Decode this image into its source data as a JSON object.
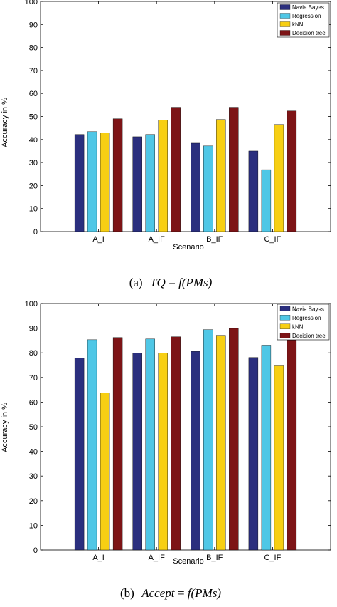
{
  "colors": {
    "Navie Bayes": "#2b2f7e",
    "Regression": "#4fc7e6",
    "kNN": "#f7cf13",
    "Decision tree": "#7d1416"
  },
  "chart_data": [
    {
      "type": "bar",
      "categories": [
        "A_I",
        "A_IF",
        "B_IF",
        "C_IF"
      ],
      "series": [
        {
          "name": "Navie Bayes",
          "values": [
            42.2,
            41.2,
            38.4,
            35.0
          ]
        },
        {
          "name": "Regression",
          "values": [
            43.4,
            42.2,
            37.2,
            26.9
          ]
        },
        {
          "name": "kNN",
          "values": [
            42.8,
            48.4,
            48.7,
            46.5
          ]
        },
        {
          "name": "Decision tree",
          "values": [
            49.0,
            54.0,
            54.0,
            52.4
          ]
        }
      ],
      "xlabel": "Scenario",
      "ylabel": "Accuracy in %",
      "ylim": [
        0,
        100
      ],
      "yticks": [
        "0",
        "10",
        "20",
        "30",
        "40",
        "50",
        "60",
        "70",
        "80",
        "90",
        "100"
      ],
      "grid": false,
      "legend": "top-right",
      "caption": {
        "prefix": "(a)",
        "formula_lhs": "TQ",
        "formula_eq": " = ",
        "formula_rhs": "f(PMs)"
      }
    },
    {
      "type": "bar",
      "categories": [
        "A_I",
        "A_IF",
        "B_IF",
        "C_IF"
      ],
      "series": [
        {
          "name": "Navie Bayes",
          "values": [
            77.8,
            79.9,
            80.6,
            78.1
          ]
        },
        {
          "name": "Regression",
          "values": [
            85.3,
            85.6,
            89.4,
            83.1
          ]
        },
        {
          "name": "kNN",
          "values": [
            63.8,
            80.0,
            87.1,
            74.7
          ]
        },
        {
          "name": "Decision tree",
          "values": [
            86.2,
            86.5,
            89.9,
            85.2
          ]
        }
      ],
      "xlabel": "Scenario",
      "ylabel": "Accuracy in %",
      "ylim": [
        0,
        100
      ],
      "yticks": [
        "0",
        "10",
        "20",
        "30",
        "40",
        "50",
        "60",
        "70",
        "80",
        "90",
        "100"
      ],
      "grid": false,
      "legend": "top-right",
      "caption": {
        "prefix": "(b)",
        "formula_lhs": "Accept",
        "formula_eq": " = ",
        "formula_rhs": "f(PMs)"
      }
    }
  ]
}
